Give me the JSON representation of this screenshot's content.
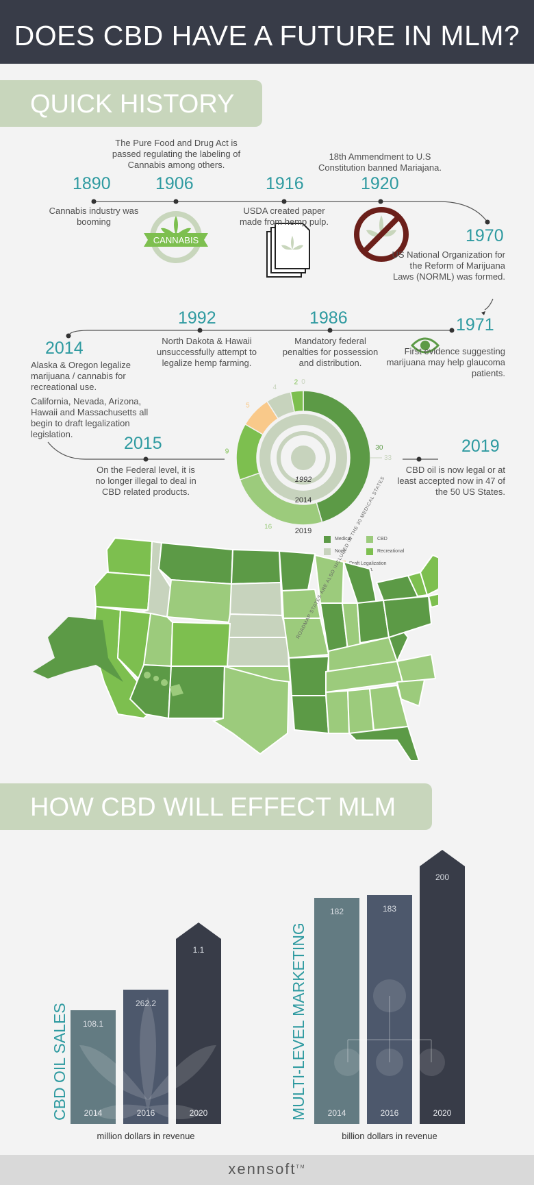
{
  "header": {
    "title": "DOES CBD HAVE A FUTURE IN MLM?"
  },
  "history": {
    "title": "QUICK HISTORY",
    "events": [
      {
        "year": "1890",
        "text": "Cannabis industry was booming"
      },
      {
        "year": "1906",
        "text": "The Pure Food and Drug Act is passed regulating the labeling of Cannabis among others.",
        "badge": "CANNABIS"
      },
      {
        "year": "1916",
        "text": "USDA created paper made from hemp pulp."
      },
      {
        "year": "1920",
        "text": "18th Ammendment to U.S Constitution banned Mariajana."
      },
      {
        "year": "1970",
        "text": "US National Organization for the Reform of Marijuana Laws (NORML) was formed."
      },
      {
        "year": "1971",
        "text": "First evidence suggesting marijuana may help glaucoma patients."
      },
      {
        "year": "1986",
        "text": "Mandatory federal penalties for possession and distribution."
      },
      {
        "year": "1992",
        "text": "North Dakota & Hawaii unsuccessfully attempt to legalize hemp farming."
      },
      {
        "year": "2014",
        "text": "Alaska & Oregon legalize marijuana / cannabis for recreational use.",
        "text2": "California, Nevada, Arizona, Hawaii and Massachusetts all begin to draft legalization legislation."
      },
      {
        "year": "2015",
        "text": "On the Federal level, it is no longer illegal to deal in CBD related products."
      },
      {
        "year": "2019",
        "text": "CBD oil is now legal or at least accepted now in 47 of the 50 US States."
      }
    ]
  },
  "legend": {
    "medical": "Medical",
    "cbd": "CBD",
    "none": "None",
    "recreational": "Recreational",
    "draft": "Draft Legalization Legislation.",
    "note": "ROADMAP STATES ARE ALSO INCLUDED IN THE 30 MEDICAL STATES"
  },
  "colors": {
    "medical": "#5c9a46",
    "cbd": "#9ccb7c",
    "none": "#c7d3bd",
    "recreational": "#7dbf4f",
    "draft": "#f9c98a",
    "accent": "#2e9aa0",
    "dark": "#383c48"
  },
  "chart_data": [
    {
      "type": "pie",
      "title": "",
      "rings": [
        {
          "label": "2019",
          "slices": [
            {
              "category": "Medical",
              "value": 30
            },
            {
              "category": "CBD",
              "value": 16
            },
            {
              "category": "Recreational",
              "value": 9
            },
            {
              "category": "Draft Legalization Legislation",
              "value": 5
            },
            {
              "category": "None",
              "value": 4
            },
            {
              "category": "Recreational",
              "value": 2
            },
            {
              "category": "None",
              "value": 0
            }
          ]
        },
        {
          "label": "2014",
          "slices": [
            {
              "category": "None",
              "value": 33
            }
          ]
        },
        {
          "label": "1992",
          "slices": []
        }
      ],
      "value_labels": [
        "30",
        "16",
        "9",
        "5",
        "4",
        "2",
        "0",
        "33"
      ]
    },
    {
      "type": "bar",
      "title": "CBD OIL SALES",
      "xlabel": "million dollars in revenue",
      "categories": [
        "2014",
        "2016",
        "2020"
      ],
      "values": [
        108.1,
        262.2,
        1.1
      ],
      "value_labels": [
        "108.1",
        "262.2",
        "1.1"
      ]
    },
    {
      "type": "bar",
      "title": "MULTI-LEVEL MARKETING",
      "xlabel": "billion dollars in revenue",
      "categories": [
        "2014",
        "2016",
        "2020"
      ],
      "values": [
        182,
        183,
        200
      ],
      "value_labels": [
        "182",
        "183",
        "200"
      ]
    }
  ],
  "effect": {
    "title": "HOW CBD WILL EFFECT MLM"
  },
  "footer": {
    "brand": "xennsoft",
    "tm": "TM"
  }
}
